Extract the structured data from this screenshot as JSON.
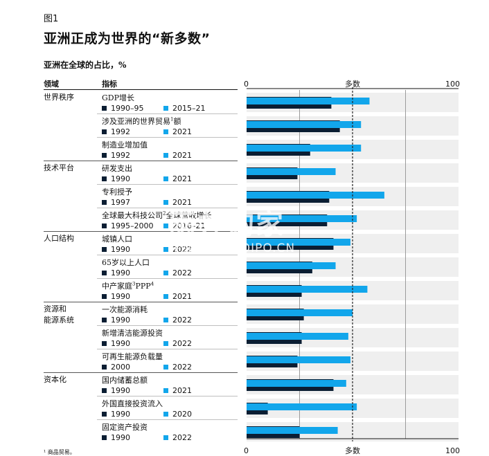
{
  "figure_label": "图1",
  "title": "亚洲正成为世界的“新多数”",
  "subtitle": "亚洲在全球的占比，%",
  "headers": {
    "domain": "领域",
    "indicator": "指标"
  },
  "footnote": "¹ 商品贸易。",
  "watermark": {
    "main": "雨并购家",
    "sub": "企业报告 | POIPO.CN"
  },
  "colors": {
    "dark": "#0b1e33",
    "light": "#12a6eb",
    "band": "#efefef",
    "dash": "#222222"
  },
  "chart_data": {
    "type": "bar",
    "xlim": [
      0,
      100
    ],
    "ticks": [
      0,
      100
    ],
    "reference_label": "多数",
    "reference_value": 50,
    "gridlines": [
      25,
      75
    ],
    "groups": [
      {
        "name": "世界秩序",
        "rows": [
          {
            "label": "GDP增长",
            "sup": "",
            "y1": "1990–95",
            "y2": "2015–21",
            "v1": 40,
            "v2": 58
          },
          {
            "label": "涉及亚洲的世界贸易",
            "sup": "1",
            "suffix": "额",
            "y1": "1992",
            "y2": "2021",
            "v1": 44,
            "v2": 54
          },
          {
            "label": "制造业增加值",
            "sup": "",
            "y1": "1992",
            "y2": "2021",
            "v1": 30,
            "v2": 54
          }
        ]
      },
      {
        "name": "技术平台",
        "rows": [
          {
            "label": "研发支出",
            "sup": "",
            "y1": "1990",
            "y2": "2021",
            "v1": 24,
            "v2": 42
          },
          {
            "label": "专利授予",
            "sup": "",
            "y1": "1997",
            "y2": "2021",
            "v1": 39,
            "v2": 65
          },
          {
            "label": "全球最大科技公司",
            "sup": "2",
            "suffix": "全球营收增长",
            "y1": "1995–2000",
            "y2": "2016–21",
            "v1": 38,
            "v2": 52
          }
        ]
      },
      {
        "name": "人口结构",
        "rows": [
          {
            "label": "城镇人口",
            "sup": "",
            "y1": "1990",
            "y2": "2022",
            "v1": 41,
            "v2": 49
          },
          {
            "label": "65岁以上人口",
            "sup": "",
            "y1": "1990",
            "y2": "2022",
            "v1": 31,
            "v2": 42
          },
          {
            "label": "中产家庭",
            "sup": "3",
            "suffix": "PPP",
            "sup2": "4",
            "y1": "1990",
            "y2": "2021",
            "v1": 26,
            "v2": 57
          }
        ]
      },
      {
        "name": "资源和\n能源系统",
        "rows": [
          {
            "label": "一次能源消耗",
            "sup": "",
            "y1": "1990",
            "y2": "2022",
            "v1": 27,
            "v2": 50
          },
          {
            "label": "新增清洁能源投资",
            "sup": "",
            "y1": "1990",
            "y2": "2022",
            "v1": 26,
            "v2": 48
          },
          {
            "label": "可再生能源负载量",
            "sup": "",
            "y1": "2000",
            "y2": "2022",
            "v1": 24,
            "v2": 49
          }
        ]
      },
      {
        "name": "资本化",
        "rows": [
          {
            "label": "国内储蓄总额",
            "sup": "",
            "y1": "1990",
            "y2": "2021",
            "v1": 41,
            "v2": 47
          },
          {
            "label": "外国直接投资流入",
            "sup": "",
            "y1": "1990",
            "y2": "2020",
            "v1": 10,
            "v2": 52
          },
          {
            "label": "固定资产投资",
            "sup": "",
            "y1": "1990",
            "y2": "2022",
            "v1": 25,
            "v2": 43
          }
        ]
      }
    ]
  }
}
